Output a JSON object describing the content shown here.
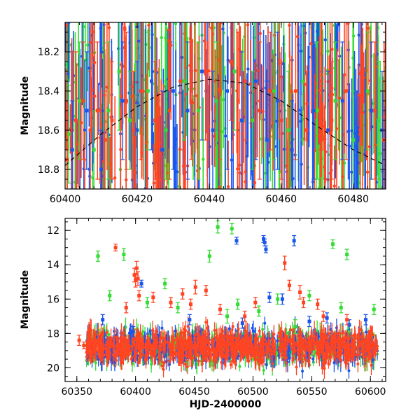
{
  "colors": {
    "green": "#33dd33",
    "red": "#ff4422",
    "blue": "#1a55ee",
    "dashed_curve": "#000000"
  },
  "chart_data": [
    {
      "type": "scatter",
      "panel": "top",
      "xlabel": "",
      "ylabel": "Magnitude",
      "xlim": [
        60400,
        60489
      ],
      "ylim": [
        18.9,
        18.05
      ],
      "y_inverted": true,
      "x_ticks": [
        60400,
        60420,
        60440,
        60460,
        60480
      ],
      "x_tick_labels": [
        "60400",
        "60420",
        "60440",
        "60460",
        "60480"
      ],
      "y_ticks": [
        18.2,
        18.4,
        18.6,
        18.8
      ],
      "y_tick_labels": [
        "18.2",
        "18.4",
        "18.6",
        "18.8"
      ],
      "grid": false,
      "series": [
        {
          "color_key": "green",
          "points": [
            [
              60401,
              18.62,
              0.25
            ],
            [
              60404,
              18.45,
              0.3
            ],
            [
              60408,
              18.7,
              0.2
            ],
            [
              60412,
              18.5,
              0.35
            ],
            [
              60415,
              18.3,
              0.3
            ],
            [
              60418,
              18.55,
              0.25
            ],
            [
              60423,
              18.4,
              0.3
            ],
            [
              60428,
              18.6,
              0.25
            ],
            [
              60433,
              18.35,
              0.3
            ],
            [
              60437,
              18.5,
              0.35
            ],
            [
              60442,
              18.45,
              0.3
            ],
            [
              60447,
              18.3,
              0.3
            ],
            [
              60452,
              18.55,
              0.25
            ],
            [
              60458,
              18.4,
              0.35
            ],
            [
              60462,
              18.6,
              0.3
            ],
            [
              60466,
              18.35,
              0.3
            ],
            [
              60470,
              18.5,
              0.35
            ],
            [
              60475,
              18.45,
              0.3
            ],
            [
              60480,
              18.65,
              0.25
            ],
            [
              60484,
              18.4,
              0.3
            ],
            [
              60487,
              18.55,
              0.3
            ]
          ]
        },
        {
          "color_key": "blue",
          "points": [
            [
              60402,
              18.7,
              0.25
            ],
            [
              60406,
              18.5,
              0.3
            ],
            [
              60410,
              18.8,
              0.2
            ],
            [
              60416,
              18.45,
              0.3
            ],
            [
              60420,
              18.6,
              0.35
            ],
            [
              60424,
              18.35,
              0.35
            ],
            [
              60427,
              18.7,
              0.3
            ],
            [
              60430,
              18.4,
              0.4
            ],
            [
              60434,
              18.5,
              0.35
            ],
            [
              60438,
              18.3,
              0.35
            ],
            [
              60441,
              18.6,
              0.3
            ],
            [
              60445,
              18.4,
              0.4
            ],
            [
              60449,
              18.55,
              0.35
            ],
            [
              60453,
              18.35,
              0.4
            ],
            [
              60456,
              18.65,
              0.3
            ],
            [
              60459,
              18.45,
              0.35
            ],
            [
              60463,
              18.7,
              0.25
            ],
            [
              60469,
              18.5,
              0.35
            ],
            [
              60473,
              18.6,
              0.3
            ],
            [
              60477,
              18.45,
              0.3
            ],
            [
              60481,
              18.7,
              0.3
            ],
            [
              60485,
              18.5,
              0.35
            ],
            [
              60488,
              18.6,
              0.3
            ]
          ]
        },
        {
          "color_key": "red",
          "points": [
            [
              60400.5,
              18.75,
              0.3
            ],
            [
              60403,
              18.55,
              0.35
            ],
            [
              60405,
              18.45,
              0.3
            ],
            [
              60407,
              18.6,
              0.3
            ],
            [
              60409,
              18.5,
              0.35
            ],
            [
              60411,
              18.65,
              0.25
            ],
            [
              60413,
              18.55,
              0.3
            ],
            [
              60417,
              18.45,
              0.35
            ],
            [
              60419,
              18.6,
              0.3
            ],
            [
              60421,
              18.4,
              0.35
            ],
            [
              60425,
              18.55,
              0.3
            ],
            [
              60429,
              18.5,
              0.35
            ],
            [
              60432,
              18.35,
              0.35
            ],
            [
              60435,
              18.45,
              0.3
            ],
            [
              60439,
              18.3,
              0.35
            ],
            [
              60443,
              18.4,
              0.35
            ],
            [
              60446,
              18.25,
              0.3
            ],
            [
              60448,
              18.45,
              0.35
            ],
            [
              60450,
              18.35,
              0.3
            ],
            [
              60454,
              18.5,
              0.35
            ],
            [
              60457,
              18.4,
              0.3
            ],
            [
              60460,
              18.55,
              0.3
            ],
            [
              60464,
              18.4,
              0.35
            ],
            [
              60467,
              18.6,
              0.3
            ],
            [
              60471,
              18.35,
              0.35
            ],
            [
              60474,
              18.55,
              0.3
            ],
            [
              60478,
              18.4,
              0.35
            ],
            [
              60482,
              18.6,
              0.3
            ],
            [
              60486,
              18.5,
              0.35
            ],
            [
              60488.5,
              18.65,
              0.3
            ]
          ]
        }
      ],
      "dashed_curve": [
        [
          60400,
          18.78
        ],
        [
          60410,
          18.62
        ],
        [
          60420,
          18.48
        ],
        [
          60430,
          18.38
        ],
        [
          60440,
          18.34
        ],
        [
          60450,
          18.36
        ],
        [
          60460,
          18.45
        ],
        [
          60470,
          18.58
        ],
        [
          60480,
          18.7
        ],
        [
          60489,
          18.78
        ]
      ]
    },
    {
      "type": "scatter",
      "panel": "bottom",
      "xlabel": "HJD-2400000",
      "ylabel": "Magnitude",
      "xlim": [
        60340,
        60613
      ],
      "ylim": [
        20.8,
        11.3
      ],
      "y_inverted": true,
      "x_ticks": [
        60350,
        60400,
        60450,
        60500,
        60550,
        60600
      ],
      "x_tick_labels": [
        "60350",
        "60400",
        "60450",
        "60500",
        "60550",
        "60600"
      ],
      "y_ticks": [
        12,
        14,
        16,
        18,
        20
      ],
      "y_tick_labels": [
        "12",
        "14",
        "16",
        "18",
        "20"
      ],
      "grid": false,
      "band": {
        "x_start": 60358,
        "x_end": 60606,
        "y_center": 18.8,
        "y_scatter": 1.6
      },
      "series": [
        {
          "color_key": "green",
          "points": [
            [
              60368,
              13.5,
              0.3
            ],
            [
              60378,
              15.8,
              0.3
            ],
            [
              60390,
              13.4,
              0.35
            ],
            [
              60410,
              16.2,
              0.3
            ],
            [
              60425,
              15.1,
              0.3
            ],
            [
              60436,
              16.5,
              0.3
            ],
            [
              60463,
              13.5,
              0.35
            ],
            [
              60470,
              11.8,
              0.35
            ],
            [
              60478,
              17.0,
              0.4
            ],
            [
              60482,
              11.9,
              0.3
            ],
            [
              60487,
              16.3,
              0.3
            ],
            [
              60505,
              16.7,
              0.3
            ],
            [
              60521,
              16.0,
              0.3
            ],
            [
              60536,
              17.6,
              0.4
            ],
            [
              60548,
              15.8,
              0.3
            ],
            [
              60568,
              12.8,
              0.25
            ],
            [
              60575,
              16.5,
              0.3
            ],
            [
              60580,
              13.4,
              0.3
            ],
            [
              60603,
              16.6,
              0.3
            ]
          ]
        },
        {
          "color_key": "blue",
          "points": [
            [
              60372,
              17.2,
              0.3
            ],
            [
              60398,
              17.9,
              0.3
            ],
            [
              60405,
              15.1,
              0.2
            ],
            [
              60446,
              17.2,
              0.3
            ],
            [
              60486,
              12.6,
              0.2
            ],
            [
              60491,
              17.4,
              0.3
            ],
            [
              60509,
              12.5,
              0.2
            ],
            [
              60510,
              12.7,
              0.2
            ],
            [
              60511,
              13.1,
              0.2
            ],
            [
              60514,
              15.9,
              0.3
            ],
            [
              60525,
              16.0,
              0.3
            ],
            [
              60535,
              12.6,
              0.3
            ],
            [
              60548,
              17.3,
              0.3
            ],
            [
              60563,
              17.1,
              0.3
            ],
            [
              60582,
              17.5,
              0.3
            ],
            [
              60596,
              17.2,
              0.3
            ]
          ]
        },
        {
          "color_key": "red",
          "points": [
            [
              60352,
              18.4,
              0.3
            ],
            [
              60356,
              18.7,
              0.2
            ],
            [
              60360,
              18.6,
              0.2
            ],
            [
              60364,
              18.7,
              0.2
            ],
            [
              60383,
              13.0,
              0.2
            ],
            [
              60392,
              16.5,
              0.3
            ],
            [
              60399,
              14.6,
              0.4
            ],
            [
              60400,
              14.9,
              0.4
            ],
            [
              60401,
              14.2,
              0.4
            ],
            [
              60402,
              14.8,
              0.4
            ],
            [
              60403,
              15.8,
              0.3
            ],
            [
              60415,
              15.9,
              0.3
            ],
            [
              60430,
              16.2,
              0.3
            ],
            [
              60440,
              15.7,
              0.3
            ],
            [
              60447,
              16.3,
              0.3
            ],
            [
              60451,
              15.3,
              0.4
            ],
            [
              60460,
              15.5,
              0.3
            ],
            [
              60472,
              16.6,
              0.3
            ],
            [
              60493,
              17.0,
              0.3
            ],
            [
              60502,
              16.2,
              0.3
            ],
            [
              60527,
              13.9,
              0.4
            ],
            [
              60531,
              15.2,
              0.3
            ],
            [
              60540,
              15.6,
              0.4
            ],
            [
              60543,
              16.2,
              0.3
            ],
            [
              60555,
              16.3,
              0.3
            ],
            [
              60560,
              17.0,
              0.3
            ],
            [
              60580,
              17.2,
              0.3
            ]
          ]
        }
      ]
    }
  ]
}
